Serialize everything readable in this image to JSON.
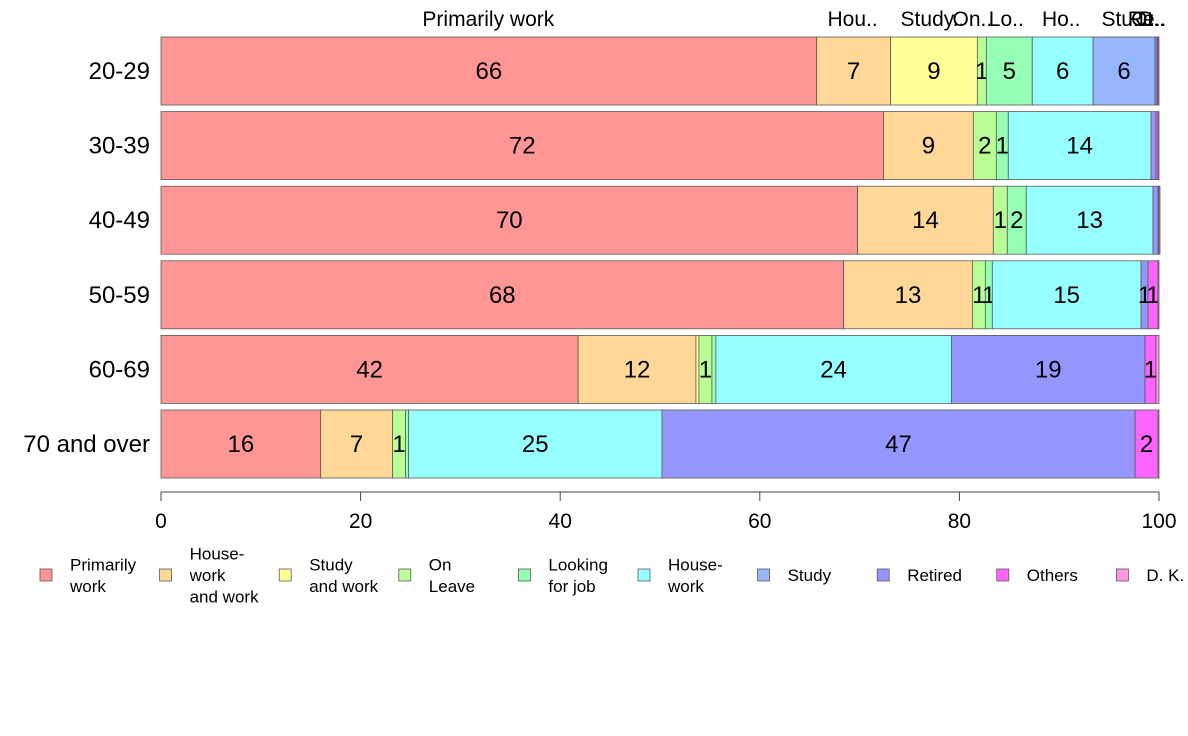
{
  "chart_data": {
    "type": "bar",
    "orientation": "horizontal",
    "stacked": true,
    "categories": [
      "20-29",
      "30-39",
      "40-49",
      "50-59",
      "60-69",
      "70 and over"
    ],
    "series": [
      {
        "name": "Primarily work",
        "color": "#ff9696",
        "values": [
          65.7,
          72.4,
          69.8,
          68.4,
          41.8,
          16.0
        ],
        "labels": [
          "66",
          "72",
          "70",
          "68",
          "42",
          "16"
        ]
      },
      {
        "name": "House-work and work",
        "color": "#ffd796",
        "values": [
          7.4,
          9.0,
          13.6,
          12.9,
          11.8,
          7.2
        ],
        "labels": [
          "7",
          "9",
          "14",
          "13",
          "12",
          "7"
        ]
      },
      {
        "name": "Study and work",
        "color": "#ffff96",
        "values": [
          8.7,
          0,
          0,
          0,
          0.3,
          0
        ],
        "labels": [
          "9",
          "",
          "",
          "",
          "",
          ""
        ]
      },
      {
        "name": "On Leave",
        "color": "#baff96",
        "values": [
          0.9,
          2.3,
          1.4,
          1.3,
          1.3,
          1.3
        ],
        "labels": [
          "1",
          "2",
          "1",
          "1",
          "1",
          "1"
        ]
      },
      {
        "name": "Looking for job",
        "color": "#96ffb6",
        "values": [
          4.6,
          1.2,
          1.9,
          0.7,
          0.4,
          0.3
        ],
        "labels": [
          "5",
          "1",
          "2",
          "1",
          "",
          ""
        ]
      },
      {
        "name": "House-work",
        "color": "#96ffff",
        "values": [
          6.1,
          14.3,
          12.7,
          14.9,
          23.6,
          25.4
        ],
        "labels": [
          "6",
          "14",
          "13",
          "15",
          "24",
          "25"
        ]
      },
      {
        "name": "Study",
        "color": "#96b6ff",
        "values": [
          6.2,
          0,
          0,
          0,
          0,
          0
        ],
        "labels": [
          "6",
          "",
          "",
          "",
          "",
          ""
        ]
      },
      {
        "name": "Retired",
        "color": "#9696ff",
        "values": [
          0.2,
          0.5,
          0.5,
          0.7,
          19.4,
          47.4
        ],
        "labels": [
          "",
          "",
          "",
          "1",
          "19",
          "47"
        ]
      },
      {
        "name": "Others",
        "color": "#ff64ff",
        "values": [
          0.1,
          0.2,
          0.1,
          1.0,
          1.1,
          2.3
        ],
        "labels": [
          "",
          "",
          "",
          "1",
          "1",
          "2"
        ]
      },
      {
        "name": "D. K.",
        "color": "#ff96e6",
        "values": [
          0.1,
          0.1,
          0.1,
          0.1,
          0.3,
          0.1
        ],
        "labels": [
          "",
          "",
          "",
          "",
          "",
          ""
        ]
      }
    ],
    "top_labels": [
      {
        "text": "Primarily work",
        "x": 32.8
      },
      {
        "text": "Hou..",
        "x": 69.3
      },
      {
        "text": "Study..",
        "x": 77.3
      },
      {
        "text": "On..",
        "x": 81.3
      },
      {
        "text": "Lo..",
        "x": 84.7
      },
      {
        "text": "Ho..",
        "x": 90.2
      },
      {
        "text": "Stu..",
        "x": 96.4
      },
      {
        "text": "Re..",
        "x": 98.8
      },
      {
        "text": "Ot..",
        "x": 98.9
      },
      {
        "text": "D..",
        "x": 99.3
      }
    ],
    "xlim": [
      0,
      100
    ],
    "xticks": [
      "0",
      "20",
      "40",
      "60",
      "80",
      "100"
    ],
    "legend": {
      "position": "bottom",
      "entries": [
        [
          "Primarily",
          "work"
        ],
        [
          "House-",
          "work",
          "and work"
        ],
        [
          "Study",
          "and work"
        ],
        [
          "On",
          "Leave"
        ],
        [
          "Looking",
          "for job"
        ],
        [
          "House-",
          "work"
        ],
        [
          "Study"
        ],
        [
          "Retired"
        ],
        [
          "Others"
        ],
        [
          "D. K."
        ]
      ]
    }
  }
}
